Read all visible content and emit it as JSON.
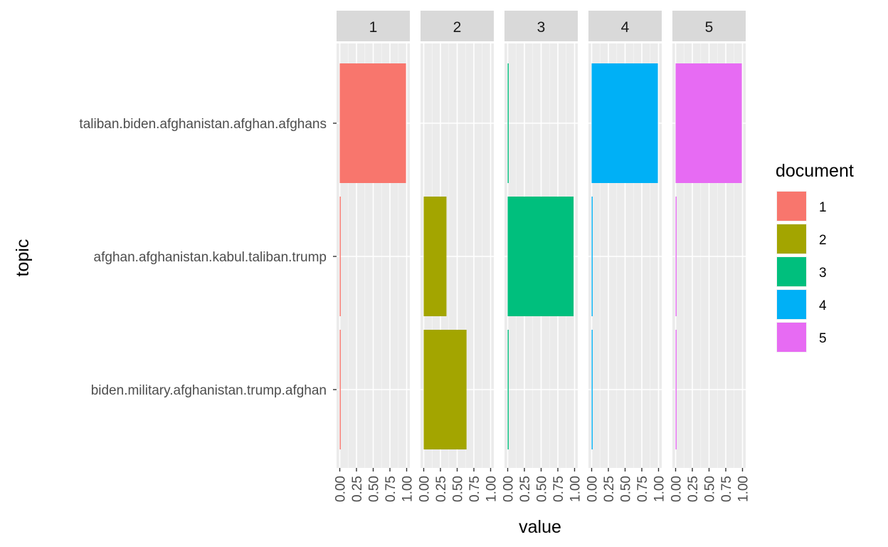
{
  "chart_data": {
    "type": "bar",
    "orientation": "horizontal",
    "facet_variable": "document",
    "facets": [
      "1",
      "2",
      "3",
      "4",
      "5"
    ],
    "categories": [
      "taliban.biden.afghanistan.afghan.afghans",
      "afghan.afghanistan.kabul.taliban.trump",
      "biden.military.afghanistan.trump.afghan"
    ],
    "series": [
      {
        "name": "1",
        "color": "#F8766D",
        "values": [
          0.99,
          0.004,
          0.004
        ]
      },
      {
        "name": "2",
        "color": "#A3A500",
        "values": [
          0.0,
          0.34,
          0.64
        ]
      },
      {
        "name": "3",
        "color": "#00BF7D",
        "values": [
          0.008,
          0.985,
          0.008
        ]
      },
      {
        "name": "4",
        "color": "#00B0F6",
        "values": [
          0.99,
          0.005,
          0.005
        ]
      },
      {
        "name": "5",
        "color": "#E76BF3",
        "values": [
          0.99,
          0.005,
          0.005
        ]
      }
    ],
    "x_ticks": [
      "0.00",
      "0.25",
      "0.50",
      "0.75",
      "1.00"
    ],
    "xlim": [
      0,
      1
    ],
    "xlabel": "value",
    "ylabel": "topic",
    "legend": {
      "title": "document",
      "position": "right",
      "items": [
        "1",
        "2",
        "3",
        "4",
        "5"
      ]
    },
    "grid": true,
    "panel_background": "#EBEBEB",
    "strip_background": "#D9D9D9"
  }
}
